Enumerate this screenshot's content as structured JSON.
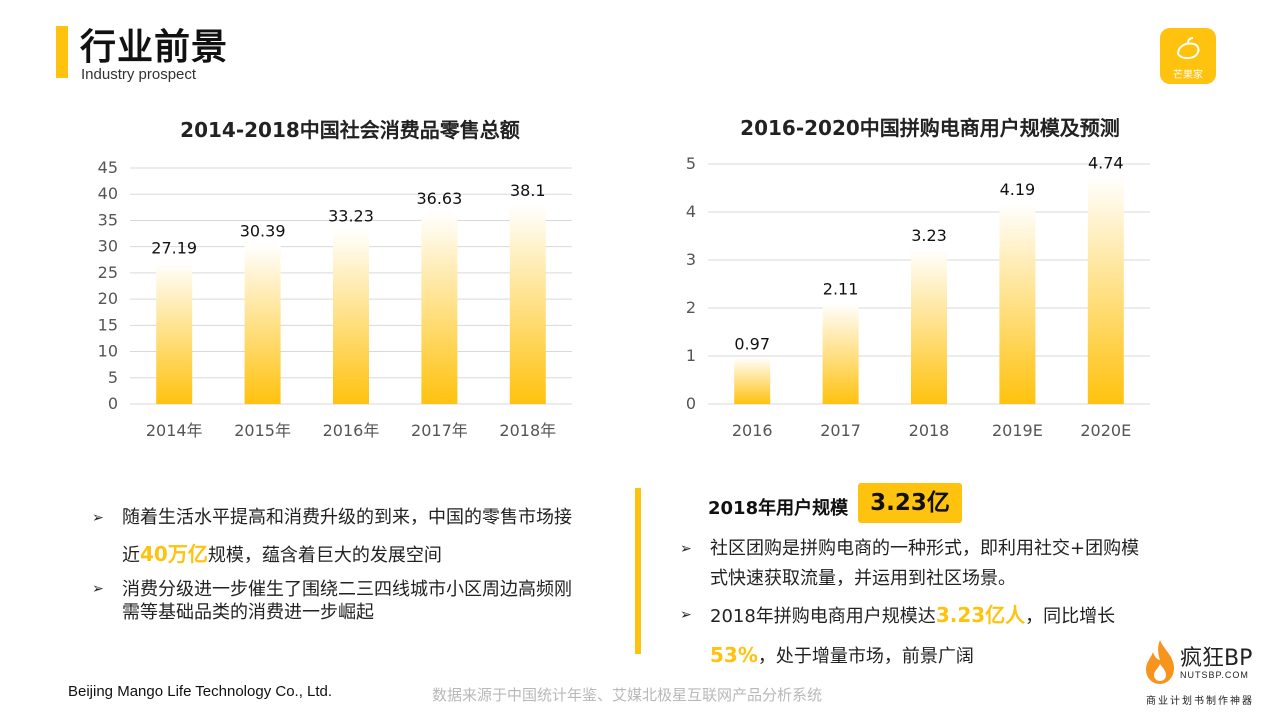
{
  "header": {
    "title": "行业前景",
    "subtitle": "Industry prospect",
    "logo_text": "芒果家"
  },
  "chart_data": [
    {
      "type": "bar",
      "title": "2014-2018中国社会消费品零售总额",
      "categories": [
        "2014年",
        "2015年",
        "2016年",
        "2017年",
        "2018年"
      ],
      "values": [
        27.19,
        30.39,
        33.23,
        36.63,
        38.1
      ],
      "value_labels": [
        "27.19",
        "30.39",
        "33.23",
        "36.63",
        "38.1"
      ],
      "ylim": [
        0,
        45
      ],
      "yticks": [
        0,
        5,
        10,
        15,
        20,
        25,
        30,
        35,
        40,
        45
      ],
      "ytick_labels": [
        "0",
        "5",
        "10",
        "15",
        "20",
        "25",
        "30",
        "35",
        "40",
        "45"
      ],
      "grid": true,
      "color": "#FFC20E"
    },
    {
      "type": "bar",
      "title": "2016-2020中国拼购电商用户规模及预测",
      "categories": [
        "2016",
        "2017",
        "2018",
        "2019E",
        "2020E"
      ],
      "values": [
        0.97,
        2.11,
        3.23,
        4.19,
        4.74
      ],
      "value_labels": [
        "0.97",
        "2.11",
        "3.23",
        "4.19",
        "4.74"
      ],
      "ylim": [
        0,
        5
      ],
      "yticks": [
        0,
        1,
        2,
        3,
        4,
        5
      ],
      "ytick_labels": [
        "0",
        "1",
        "2",
        "3",
        "4",
        "5"
      ],
      "grid": true,
      "color": "#FFC20E"
    }
  ],
  "left_bullets": {
    "b1_pre": "随着生活水平提高和消费升级的到来，中国的零售市场接近",
    "b1_hl": "40万亿",
    "b1_post": "规模，蕴含着巨大的发展空间",
    "b2": "消费分级进一步催生了围绕二三四线城市小区周边高频刚需等基础品类的消费进一步崛起"
  },
  "right_panel": {
    "user_label": "2018年用户规模",
    "user_value": "3.23亿",
    "b1": "社区团购是拼购电商的一种形式，即利用社交+团购模式快速获取流量，并运用到社区场景。",
    "b2_pre": "2018年拼购电商用户规模达",
    "b2_hl1": "3.23亿人",
    "b2_mid": "，同比增长",
    "b2_hl2": "53%",
    "b2_post": "，处于增量市场，前景广阔"
  },
  "bullet_icon": "arrow-bullet-icon",
  "footer": {
    "company": "Beijing Mango Life Technology Co., Ltd.",
    "source": "数据来源于中国统计年鉴、艾媒北极星互联网产品分析系统"
  },
  "brand": {
    "name": "疯狂BP",
    "url": "NUTSBP.COM",
    "tagline": "商业计划书制作神器"
  }
}
